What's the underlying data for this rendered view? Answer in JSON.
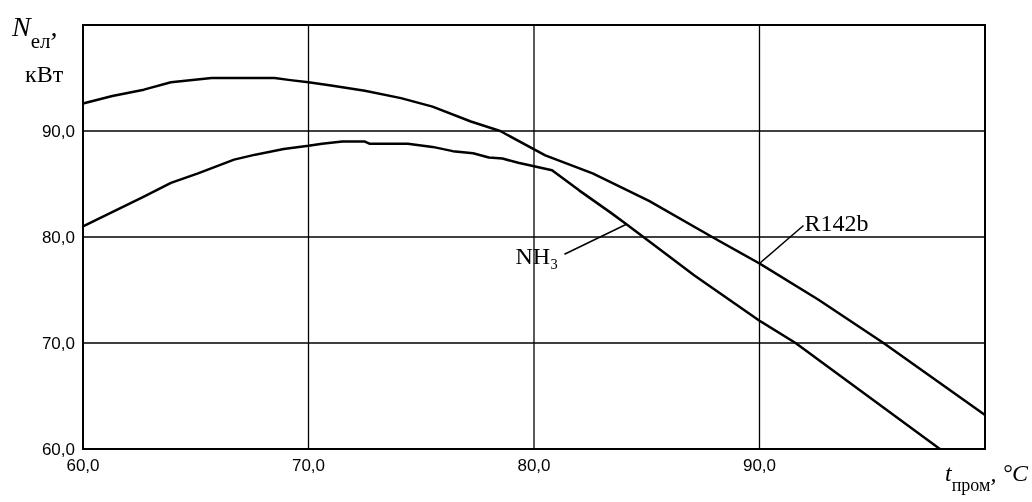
{
  "chart_data": {
    "type": "line",
    "xlabel": "t$_{пром}$, °C",
    "ylabel": "N$_{ел}$, кВт",
    "xlim": [
      60,
      100
    ],
    "ylim": [
      60,
      100
    ],
    "xticks": [
      {
        "value": 60,
        "label": "60,0"
      },
      {
        "value": 70,
        "label": "70,0"
      },
      {
        "value": 80,
        "label": "80,0"
      },
      {
        "value": 90,
        "label": "90,0"
      },
      {
        "value": 100,
        "label": null
      }
    ],
    "yticks": [
      {
        "value": 60,
        "label": "60,0"
      },
      {
        "value": 70,
        "label": "70,0"
      },
      {
        "value": 80,
        "label": "80,0"
      },
      {
        "value": 90,
        "label": "90,0"
      },
      {
        "value": 100,
        "label": null
      }
    ],
    "grid": true,
    "marker": "none",
    "line_style": "solid",
    "series": [
      {
        "name": "R142b",
        "color": "#000000",
        "x": [
          60,
          61.3,
          62.7,
          63.9,
          65.7,
          68.5,
          69.2,
          70,
          71,
          72.5,
          74.1,
          75.5,
          77.2,
          78.5,
          80.5,
          82.6,
          85.1,
          87.9,
          90,
          92.6,
          95.5,
          100
        ],
        "values": [
          92.6,
          93.3,
          93.9,
          94.6,
          95.0,
          95.0,
          94.8,
          94.6,
          94.3,
          93.8,
          93.1,
          92.3,
          90.9,
          90.0,
          87.7,
          86.0,
          83.4,
          80.0,
          77.5,
          74.1,
          70.0,
          63.2
        ]
      },
      {
        "name": "NH₃",
        "color": "#000000",
        "x": [
          60,
          62.7,
          63.9,
          65.1,
          66.7,
          67.5,
          68.9,
          70,
          70.6,
          71.5,
          72.5,
          72.7,
          74.4,
          75.5,
          76.4,
          77.3,
          78,
          78.6,
          79.3,
          80.8,
          82,
          83.4,
          84.1,
          87.1,
          90,
          91.6,
          98
        ],
        "values": [
          81.0,
          83.8,
          85.1,
          86.0,
          87.3,
          87.7,
          88.3,
          88.6,
          88.8,
          89.0,
          89.0,
          88.8,
          88.8,
          88.5,
          88.1,
          87.9,
          87.5,
          87.4,
          87.0,
          86.3,
          84.4,
          82.3,
          81.2,
          76.4,
          72.1,
          70.0,
          60.0
        ]
      }
    ]
  }
}
